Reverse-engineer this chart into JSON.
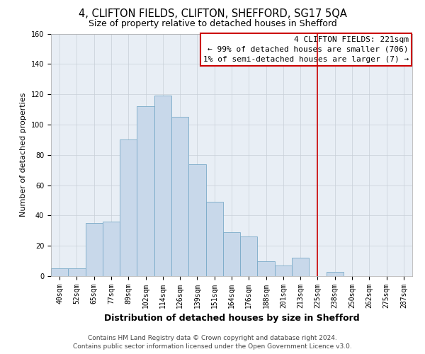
{
  "title": "4, CLIFTON FIELDS, CLIFTON, SHEFFORD, SG17 5QA",
  "subtitle": "Size of property relative to detached houses in Shefford",
  "xlabel": "Distribution of detached houses by size in Shefford",
  "ylabel": "Number of detached properties",
  "bar_color": "#c8d8ea",
  "bar_edge_color": "#7aaac8",
  "background_color": "#ffffff",
  "plot_bg_color": "#e8eef5",
  "grid_color": "#c8cfd8",
  "bin_labels": [
    "40sqm",
    "52sqm",
    "65sqm",
    "77sqm",
    "89sqm",
    "102sqm",
    "114sqm",
    "126sqm",
    "139sqm",
    "151sqm",
    "164sqm",
    "176sqm",
    "188sqm",
    "201sqm",
    "213sqm",
    "225sqm",
    "238sqm",
    "250sqm",
    "262sqm",
    "275sqm",
    "287sqm"
  ],
  "bar_heights": [
    5,
    5,
    35,
    36,
    90,
    112,
    119,
    105,
    74,
    49,
    29,
    26,
    10,
    7,
    12,
    0,
    3,
    0,
    0,
    0,
    0
  ],
  "ylim": [
    0,
    160
  ],
  "yticks": [
    0,
    20,
    40,
    60,
    80,
    100,
    120,
    140,
    160
  ],
  "vline_x_index": 15,
  "vline_color": "#cc0000",
  "annotation_text_line1": "4 CLIFTON FIELDS: 221sqm",
  "annotation_text_line2": "← 99% of detached houses are smaller (706)",
  "annotation_text_line3": "1% of semi-detached houses are larger (7) →",
  "footer_line1": "Contains HM Land Registry data © Crown copyright and database right 2024.",
  "footer_line2": "Contains public sector information licensed under the Open Government Licence v3.0.",
  "title_fontsize": 10.5,
  "subtitle_fontsize": 9,
  "xlabel_fontsize": 9,
  "ylabel_fontsize": 8,
  "tick_fontsize": 7,
  "annotation_fontsize": 8,
  "footer_fontsize": 6.5
}
